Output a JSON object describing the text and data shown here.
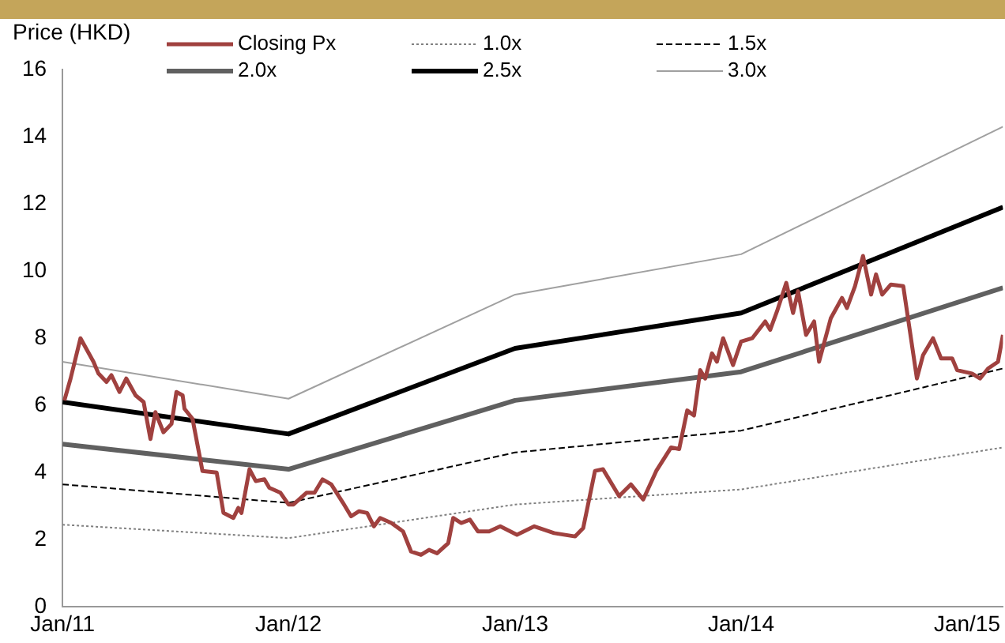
{
  "chart_data": {
    "type": "line",
    "ylabel": "Price (HKD)",
    "xlim": [
      "2011-01-01",
      "2015-02-28"
    ],
    "xticks": [
      {
        "value": "2011-01-01",
        "label": "Jan/11"
      },
      {
        "value": "2012-01-01",
        "label": "Jan/12"
      },
      {
        "value": "2013-01-01",
        "label": "Jan/13"
      },
      {
        "value": "2014-01-01",
        "label": "Jan/14"
      },
      {
        "value": "2015-01-01",
        "label": "Jan/15"
      }
    ],
    "ylim": [
      0,
      16
    ],
    "yticks": [
      0,
      2,
      4,
      6,
      8,
      10,
      12,
      14,
      16
    ],
    "grid": false,
    "legend": "top",
    "marker": "none",
    "series": [
      {
        "name": "Closing Px",
        "color": "#a0413f",
        "line_style": "solid",
        "x": [
          "2011-01-04",
          "2011-01-14",
          "2011-01-30",
          "2011-02-20",
          "2011-02-28",
          "2011-03-13",
          "2011-03-21",
          "2011-04-03",
          "2011-04-14",
          "2011-04-29",
          "2011-05-12",
          "2011-05-23",
          "2011-05-31",
          "2011-06-13",
          "2011-06-26",
          "2011-07-04",
          "2011-07-14",
          "2011-07-17",
          "2011-07-30",
          "2011-08-15",
          "2011-09-07",
          "2011-09-18",
          "2011-10-04",
          "2011-10-12",
          "2011-10-17",
          "2011-10-30",
          "2011-11-09",
          "2011-11-23",
          "2011-12-01",
          "2011-12-19",
          "2012-01-01",
          "2012-01-09",
          "2012-01-30",
          "2012-02-12",
          "2012-02-25",
          "2012-03-10",
          "2012-03-29",
          "2012-04-11",
          "2012-04-24",
          "2012-05-07",
          "2012-05-18",
          "2012-05-28",
          "2012-06-15",
          "2012-07-04",
          "2012-07-17",
          "2012-08-02",
          "2012-08-15",
          "2012-08-28",
          "2012-09-15",
          "2012-09-23",
          "2012-10-06",
          "2012-10-20",
          "2012-11-02",
          "2012-11-20",
          "2012-12-08",
          "2013-01-04",
          "2013-02-01",
          "2013-03-05",
          "2013-04-08",
          "2013-04-21",
          "2013-05-10",
          "2013-05-23",
          "2013-06-18",
          "2013-07-07",
          "2013-07-27",
          "2013-08-17",
          "2013-09-10",
          "2013-09-23",
          "2013-10-06",
          "2013-10-17",
          "2013-10-27",
          "2013-11-04",
          "2013-11-15",
          "2013-11-23",
          "2013-12-03",
          "2013-12-19",
          "2014-01-01",
          "2014-01-19",
          "2014-02-09",
          "2014-02-17",
          "2014-02-28",
          "2014-03-15",
          "2014-03-26",
          "2014-04-03",
          "2014-04-16",
          "2014-04-29",
          "2014-05-07",
          "2014-05-26",
          "2014-06-13",
          "2014-06-21",
          "2014-07-04",
          "2014-07-17",
          "2014-07-30",
          "2014-08-07",
          "2014-08-17",
          "2014-08-31",
          "2014-09-20",
          "2014-10-12",
          "2014-10-22",
          "2014-11-07",
          "2014-11-20",
          "2014-12-08",
          "2014-12-16",
          "2015-01-09",
          "2015-01-22",
          "2015-02-04",
          "2015-02-20",
          "2015-02-28"
        ],
        "values": [
          6.15,
          6.8,
          8.0,
          7.3,
          6.95,
          6.7,
          6.9,
          6.4,
          6.8,
          6.3,
          6.1,
          5.0,
          5.8,
          5.2,
          5.45,
          6.4,
          6.3,
          5.9,
          5.6,
          4.05,
          4.0,
          2.8,
          2.65,
          2.95,
          2.8,
          4.1,
          3.75,
          3.8,
          3.55,
          3.4,
          3.05,
          3.05,
          3.4,
          3.4,
          3.8,
          3.65,
          3.1,
          2.7,
          2.85,
          2.8,
          2.4,
          2.65,
          2.5,
          2.25,
          1.65,
          1.55,
          1.7,
          1.6,
          1.9,
          2.65,
          2.5,
          2.6,
          2.25,
          2.25,
          2.4,
          2.15,
          2.4,
          2.2,
          2.1,
          2.35,
          4.05,
          4.1,
          3.3,
          3.65,
          3.2,
          4.05,
          4.75,
          4.7,
          5.85,
          5.7,
          7.05,
          6.8,
          7.55,
          7.3,
          8.0,
          7.2,
          7.9,
          8.0,
          8.5,
          8.25,
          8.8,
          9.65,
          8.75,
          9.4,
          8.1,
          8.5,
          7.3,
          8.6,
          9.2,
          8.9,
          9.55,
          10.45,
          9.3,
          9.9,
          9.3,
          9.6,
          9.55,
          6.8,
          7.5,
          8.0,
          7.4,
          7.4,
          7.05,
          6.95,
          6.8,
          7.1,
          7.3,
          8.1
        ]
      },
      {
        "name": "1.0x",
        "color": "#808080",
        "line_style": "dotted",
        "x": [
          "2011-01-01",
          "2012-01-01",
          "2013-01-01",
          "2014-01-01",
          "2015-02-28"
        ],
        "values": [
          2.45,
          2.05,
          3.05,
          3.5,
          4.75
        ]
      },
      {
        "name": "1.5x",
        "color": "#000000",
        "line_style": "dashed",
        "x": [
          "2011-01-01",
          "2012-01-01",
          "2013-01-01",
          "2014-01-01",
          "2015-02-28"
        ],
        "values": [
          3.65,
          3.1,
          4.6,
          5.25,
          7.1
        ]
      },
      {
        "name": "2.0x",
        "color": "#606060",
        "line_style": "solid",
        "x": [
          "2011-01-01",
          "2012-01-01",
          "2013-01-01",
          "2014-01-01",
          "2015-02-28"
        ],
        "values": [
          4.85,
          4.1,
          6.15,
          7.0,
          9.5
        ]
      },
      {
        "name": "2.5x",
        "color": "#000000",
        "line_style": "solid",
        "x": [
          "2011-01-01",
          "2012-01-01",
          "2013-01-01",
          "2014-01-01",
          "2015-02-28"
        ],
        "values": [
          6.1,
          5.15,
          7.7,
          8.75,
          11.9
        ]
      },
      {
        "name": "3.0x",
        "color": "#a0a0a0",
        "line_style": "solid",
        "x": [
          "2011-01-01",
          "2012-01-01",
          "2013-01-01",
          "2014-01-01",
          "2015-02-28"
        ],
        "values": [
          7.3,
          6.2,
          9.3,
          10.5,
          14.3
        ]
      }
    ]
  }
}
